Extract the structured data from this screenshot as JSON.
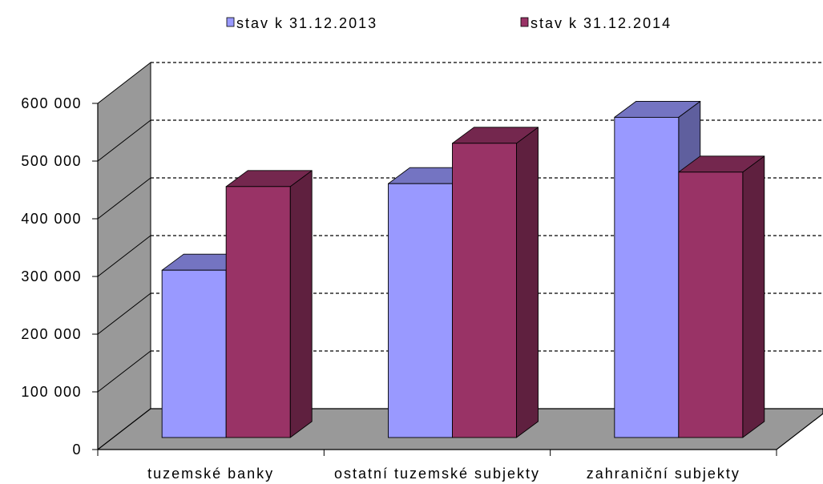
{
  "chart_data": {
    "type": "bar",
    "three_d": true,
    "categories": [
      "tuzemské banky",
      "ostatní tuzemské subjekty",
      "zahraniční subjekty"
    ],
    "series": [
      {
        "name": "stav k 31.12.2013",
        "color": "#9999FF",
        "values": [
          290000,
          440000,
          555000
        ]
      },
      {
        "name": "stav k 31.12.2014",
        "color": "#993366",
        "values": [
          435000,
          510000,
          460000
        ]
      }
    ],
    "ylim": [
      0,
      600000
    ],
    "yticks": [
      0,
      100000,
      200000,
      300000,
      400000,
      500000,
      600000
    ],
    "ytick_labels": [
      "0",
      "100 000",
      "200 000",
      "300 000",
      "400 000",
      "500 000",
      "600 000"
    ],
    "grid": true,
    "legend_position": "top",
    "wall_color": "#999999",
    "floor_color": "#999999",
    "gridline_color": "#000000",
    "plot_background": "#FFFFFF"
  }
}
